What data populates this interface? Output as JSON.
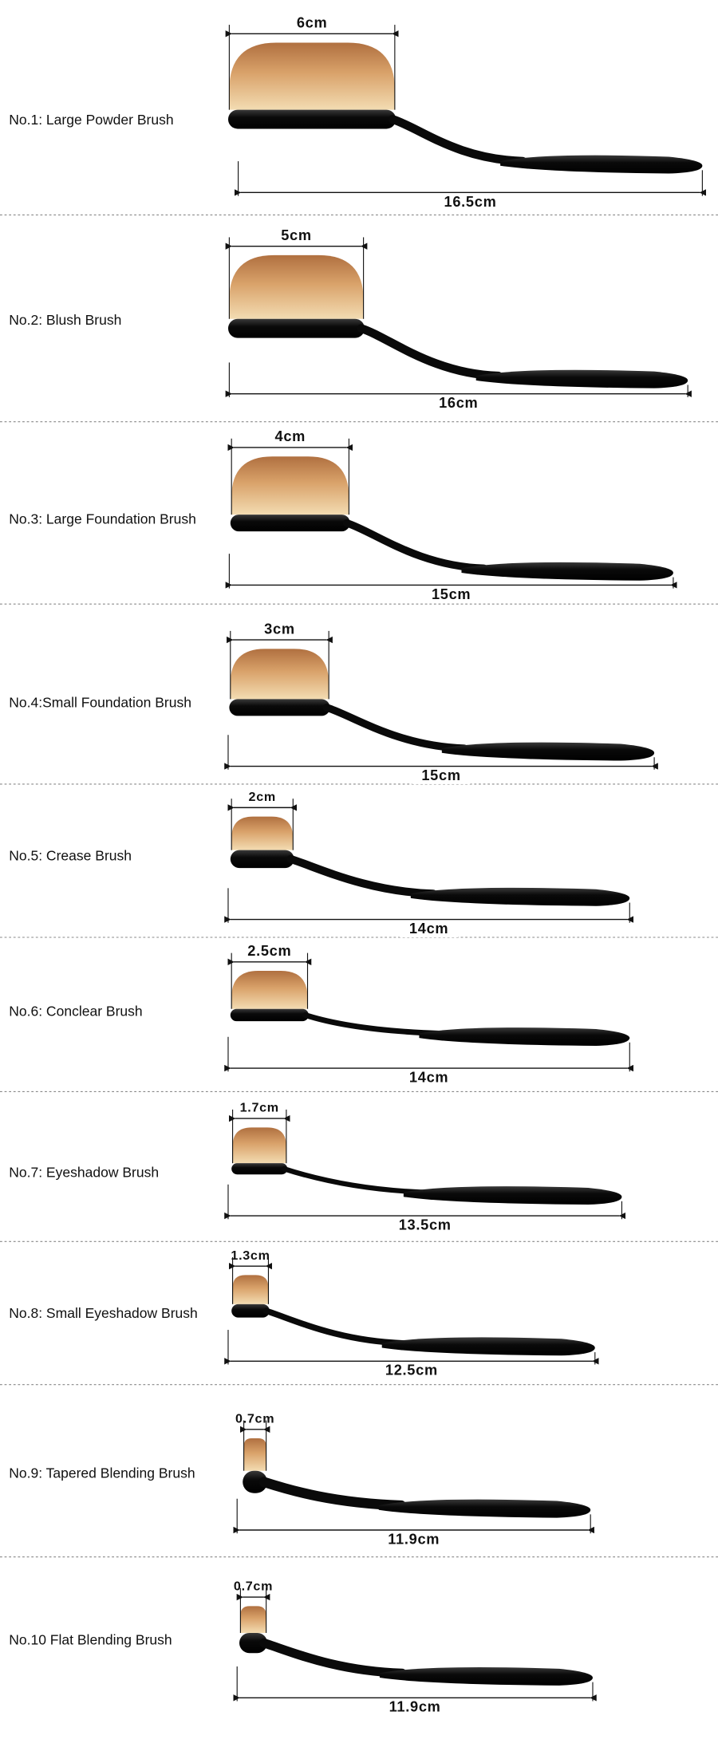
{
  "items": [
    {
      "label": "No.1: Large Powder Brush",
      "head_width": "6cm",
      "length": "16.5cm"
    },
    {
      "label": "No.2: Blush Brush",
      "head_width": "5cm",
      "length": "16cm"
    },
    {
      "label": "No.3: Large Foundation Brush",
      "head_width": "4cm",
      "length": "15cm"
    },
    {
      "label": "No.4:Small Foundation Brush",
      "head_width": "3cm",
      "length": "15cm"
    },
    {
      "label": "No.5: Crease Brush",
      "head_width": "2cm",
      "length": "14cm"
    },
    {
      "label": "No.6: Conclear Brush",
      "head_width": "2.5cm",
      "length": "14cm"
    },
    {
      "label": "No.7: Eyeshadow Brush",
      "head_width": "1.7cm",
      "length": "13.5cm"
    },
    {
      "label": "No.8: Small Eyeshadow Brush",
      "head_width": "1.3cm",
      "length": "12.5cm"
    },
    {
      "label": "No.9: Tapered Blending Brush",
      "head_width": "0.7cm",
      "length": "11.9cm"
    },
    {
      "label": "No.10 Flat Blending Brush",
      "head_width": "0.7cm",
      "length": "11.9cm"
    }
  ]
}
